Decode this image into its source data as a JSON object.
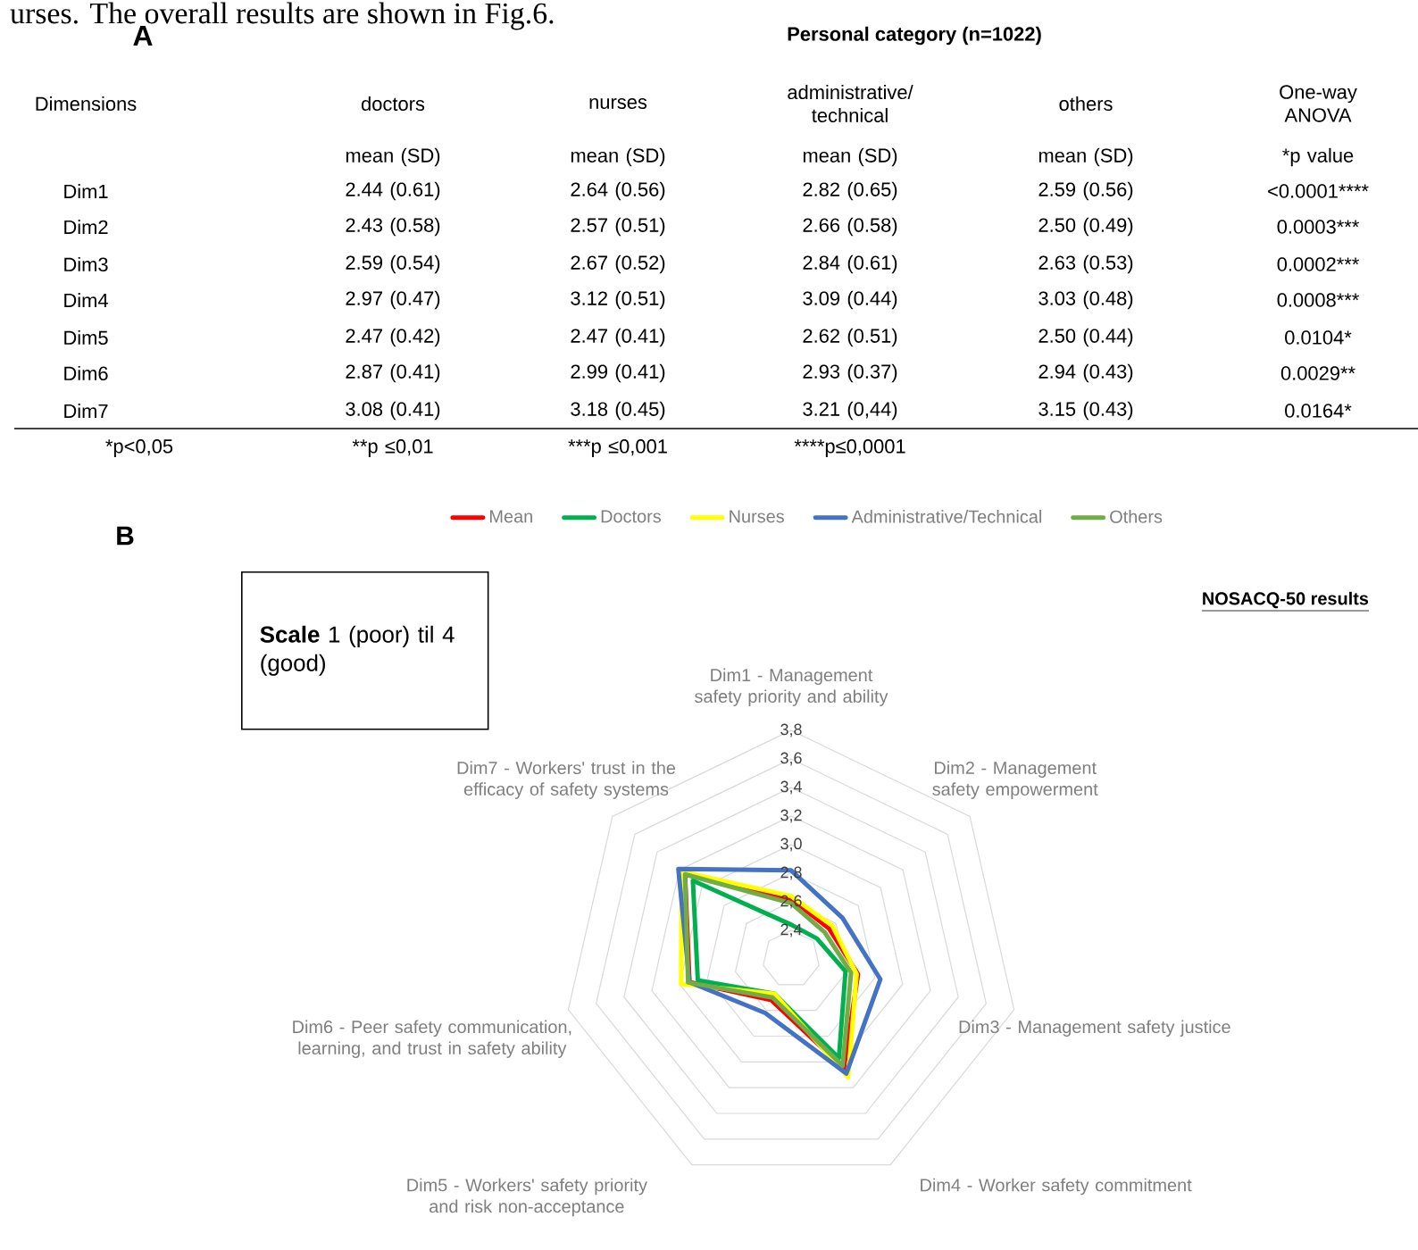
{
  "chart_data": [
    {
      "type": "other",
      "title": "Personal category (n=1022)",
      "annotations": [
        "urses. The overall results are shown in Fig.6.",
        "A",
        "Dimensions",
        "doctors",
        "nurses",
        "administrative/ technical",
        "others",
        "One-way ANOVA",
        "mean (SD)",
        "mean (SD)",
        "mean (SD)",
        "mean (SD)",
        "*p value",
        "Dim1",
        "2.44 (0.61)",
        "2.64 (0.56)",
        "2.82 (0.65)",
        "2.59 (0.56)",
        "<0.0001****",
        "Dim2",
        "2.43 (0.58)",
        "2.57 (0.51)",
        "2.66 (0.58)",
        "2.50 (0.49)",
        "0.0003***",
        "Dim3",
        "2.59 (0.54)",
        "2.67 (0.52)",
        "2.84 (0.61)",
        "2.63 (0.53)",
        "0.0002***",
        "Dim4",
        "2.97 (0.47)",
        "3.12 (0.51)",
        "3.09 (0.44)",
        "3.03 (0.48)",
        "0.0008***",
        "Dim5",
        "2.47 (0.42)",
        "2.47 (0.41)",
        "2.62 (0.51)",
        "2.50 (0.44)",
        "0.0104*",
        "Dim6",
        "2.87 (0.41)",
        "2.99 (0.41)",
        "2.93 (0.37)",
        "2.94 (0.43)",
        "0.0029**",
        "Dim7",
        "3.08 (0.41)",
        "3.18 (0.45)",
        "3.21 (0,44)",
        "3.15 (0.43)",
        "0.0164*",
        "*p<0,05",
        "**p ≤0,01",
        "***p ≤0,001",
        "****p≤0,0001"
      ]
    },
    {
      "type": "radar",
      "title": "NOSACQ-50 results",
      "annotations": [
        "B",
        "**Scale** 1 (poor) til 4 (good)"
      ],
      "categories": [
        "Dim1 - Management safety priority and ability",
        "Dim2 - Management safety empowerment",
        "Dim3 - Management safety justice",
        "Dim4 - Worker safety commitment",
        "Dim5 - Workers' safety priority and risk non-acceptance",
        "Dim6 - Peer safety communication, learning, and trust in safety ability",
        "Dim7 - Workers' trust in the efficacy of safety systems"
      ],
      "ylim": [
        2.2,
        3.8
      ],
      "yticks": [
        {
          "value": 2.4,
          "label": "2,4"
        },
        {
          "value": 2.6,
          "label": "2,6"
        },
        {
          "value": 2.8,
          "label": "2,8"
        },
        {
          "value": 3.0,
          "label": "3,0"
        },
        {
          "value": 3.2,
          "label": "3,2"
        },
        {
          "value": 3.4,
          "label": "3,4"
        },
        {
          "value": 3.6,
          "label": "3,6"
        },
        {
          "value": 3.8,
          "label": "3,8"
        }
      ],
      "grid": true,
      "legend": "top",
      "series": [
        {
          "name": "Mean",
          "color": "#ff0000",
          "values": [
            2.62,
            2.54,
            2.68,
            3.05,
            2.52,
            2.93,
            3.15
          ]
        },
        {
          "name": "Doctors",
          "color": "#00b050",
          "values": [
            2.44,
            2.43,
            2.59,
            2.97,
            2.47,
            2.87,
            3.08
          ]
        },
        {
          "name": "Nurses",
          "color": "#ffff00",
          "values": [
            2.64,
            2.57,
            2.67,
            3.12,
            2.47,
            2.99,
            3.18
          ]
        },
        {
          "name": "Administrative/Technical",
          "color": "#4472c4",
          "values": [
            2.82,
            2.66,
            2.84,
            3.09,
            2.62,
            2.93,
            3.21
          ]
        },
        {
          "name": "Others",
          "color": "#70ad47",
          "values": [
            2.59,
            2.5,
            2.63,
            3.03,
            2.5,
            2.94,
            3.15
          ]
        }
      ]
    }
  ]
}
